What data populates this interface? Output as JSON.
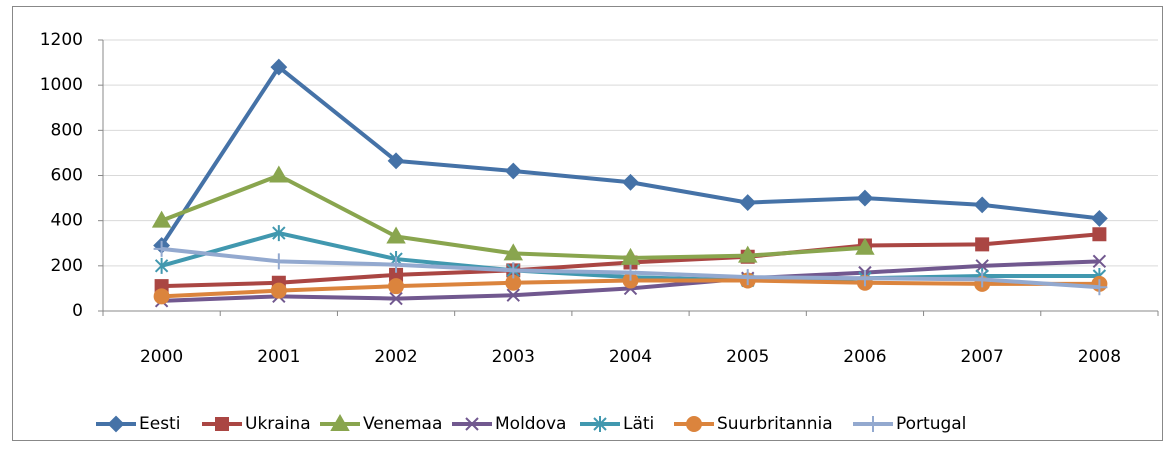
{
  "chart_data": {
    "type": "line",
    "categories": [
      "2000",
      "2001",
      "2002",
      "2003",
      "2004",
      "2005",
      "2006",
      "2007",
      "2008"
    ],
    "series": [
      {
        "name": "Eesti",
        "color": "#4572a7",
        "marker": "diamond",
        "values": [
          290,
          1080,
          665,
          620,
          570,
          480,
          500,
          470,
          410
        ]
      },
      {
        "name": "Ukraina",
        "color": "#aa4643",
        "marker": "square",
        "values": [
          110,
          125,
          160,
          180,
          215,
          240,
          290,
          295,
          340
        ]
      },
      {
        "name": "Venemaa",
        "color": "#89a54e",
        "marker": "triangle",
        "values": [
          400,
          600,
          330,
          255,
          235,
          245,
          280,
          null,
          null
        ]
      },
      {
        "name": "Moldova",
        "color": "#71588f",
        "marker": "x",
        "values": [
          45,
          65,
          55,
          70,
          100,
          145,
          170,
          200,
          220
        ]
      },
      {
        "name": "Läti",
        "color": "#4198af",
        "marker": "star",
        "values": [
          200,
          345,
          230,
          180,
          150,
          135,
          145,
          155,
          155
        ]
      },
      {
        "name": "Suurbritannia",
        "color": "#db843d",
        "marker": "circle",
        "values": [
          65,
          90,
          110,
          125,
          135,
          135,
          125,
          120,
          120
        ]
      },
      {
        "name": "Portugal",
        "color": "#93a9cf",
        "marker": "plus",
        "values": [
          275,
          220,
          205,
          180,
          170,
          150,
          145,
          140,
          105
        ]
      }
    ],
    "ylim": [
      0,
      1200
    ],
    "yticks": [
      0,
      200,
      400,
      600,
      800,
      1000,
      1200
    ],
    "grid": true,
    "legend": "bottom"
  }
}
